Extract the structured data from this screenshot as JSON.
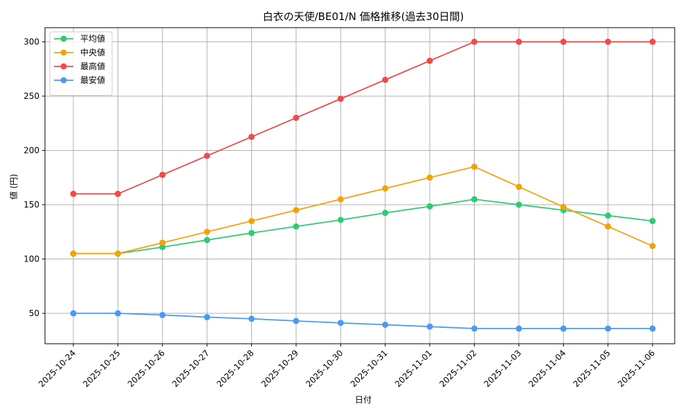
{
  "chart_data": {
    "type": "line",
    "title": "白衣の天使/BE01/N 価格推移(過去30日間)",
    "xlabel": "日付",
    "ylabel": "値 (円)",
    "categories": [
      "2025-10-24",
      "2025-10-25",
      "2025-10-26",
      "2025-10-27",
      "2025-10-28",
      "2025-10-29",
      "2025-10-30",
      "2025-10-31",
      "2025-11-01",
      "2025-11-02",
      "2025-11-03",
      "2025-11-04",
      "2025-11-05",
      "2025-11-06"
    ],
    "ylim": [
      22,
      313
    ],
    "yticks": [
      50,
      100,
      150,
      200,
      250,
      300
    ],
    "grid": true,
    "legend": "top-left",
    "series": [
      {
        "name": "平均値",
        "color": "#2ecc71",
        "values": [
          105,
          105,
          111,
          117.5,
          124,
          130,
          136,
          142.5,
          148.5,
          155,
          150,
          145,
          140,
          135
        ]
      },
      {
        "name": "中央値",
        "color": "#f5a20a",
        "values": [
          105,
          105,
          115,
          125,
          135,
          145,
          155,
          165,
          175,
          185,
          166.5,
          148,
          130,
          112
        ]
      },
      {
        "name": "最高値",
        "color": "#f04a4a",
        "values": [
          160,
          160,
          177.5,
          195,
          212.5,
          230,
          247.5,
          265,
          282.5,
          300,
          300,
          300,
          300,
          300
        ]
      },
      {
        "name": "最安値",
        "color": "#4a9af5",
        "values": [
          50,
          50,
          48.5,
          46.5,
          45,
          43,
          41.2,
          39.5,
          37.8,
          36,
          36,
          36,
          36,
          36
        ]
      }
    ]
  }
}
